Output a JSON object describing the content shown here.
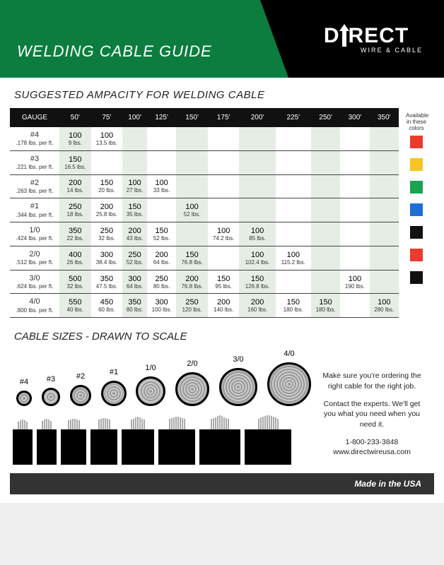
{
  "header": {
    "title": "WELDING CABLE GUIDE",
    "brand_main": "DIRECT",
    "brand_sub": "WIRE & CABLE",
    "bg_green": "#0d7d3f",
    "bg_black": "#000000"
  },
  "section1_title": "SUGGESTED AMPACITY FOR WELDING CABLE",
  "lengths": [
    "50'",
    "75'",
    "100'",
    "125'",
    "150'",
    "175'",
    "200'",
    "225'",
    "250'",
    "300'",
    "350'"
  ],
  "gauge_header": "GAUGE",
  "rows": [
    {
      "gauge": "#4",
      "spec": ".178 lbs. per ft.",
      "cells": [
        {
          "amp": "100",
          "wt": "9 lbs."
        },
        {
          "amp": "100",
          "wt": "13.5 lbs."
        },
        null,
        null,
        null,
        null,
        null,
        null,
        null,
        null,
        null
      ]
    },
    {
      "gauge": "#3",
      "spec": ".221 lbs. per ft.",
      "cells": [
        {
          "amp": "150",
          "wt": "16.5 lbs."
        },
        null,
        null,
        null,
        null,
        null,
        null,
        null,
        null,
        null,
        null
      ]
    },
    {
      "gauge": "#2",
      "spec": ".263 lbs. per ft.",
      "cells": [
        {
          "amp": "200",
          "wt": "14 lbs."
        },
        {
          "amp": "150",
          "wt": "20 lbs."
        },
        {
          "amp": "100",
          "wt": "27 lbs."
        },
        {
          "amp": "100",
          "wt": "33 lbs."
        },
        null,
        null,
        null,
        null,
        null,
        null,
        null
      ]
    },
    {
      "gauge": "#1",
      "spec": ".344 lbs. per ft.",
      "cells": [
        {
          "amp": "250",
          "wt": "18 lbs."
        },
        {
          "amp": "200",
          "wt": "25.8 lbs."
        },
        {
          "amp": "150",
          "wt": "35 lbs."
        },
        null,
        {
          "amp": "100",
          "wt": "52 lbs."
        },
        null,
        null,
        null,
        null,
        null,
        null
      ]
    },
    {
      "gauge": "1/0",
      "spec": ".424 lbs. per ft.",
      "cells": [
        {
          "amp": "350",
          "wt": "22 lbs."
        },
        {
          "amp": "250",
          "wt": "32 lbs."
        },
        {
          "amp": "200",
          "wt": "43 lbs."
        },
        {
          "amp": "150",
          "wt": "52 lbs."
        },
        null,
        {
          "amp": "100",
          "wt": "74.2 lbs."
        },
        {
          "amp": "100",
          "wt": "85 lbs."
        },
        null,
        null,
        null,
        null
      ]
    },
    {
      "gauge": "2/0",
      "spec": ".512 lbs. per ft.",
      "cells": [
        {
          "amp": "400",
          "wt": "26 lbs."
        },
        {
          "amp": "300",
          "wt": "38.4 lbs."
        },
        {
          "amp": "250",
          "wt": "52 lbs."
        },
        {
          "amp": "200",
          "wt": "64 lbs."
        },
        {
          "amp": "150",
          "wt": "76.8 lbs."
        },
        null,
        {
          "amp": "100",
          "wt": "102.4 lbs."
        },
        {
          "amp": "100",
          "wt": "115.2 lbs."
        },
        null,
        null,
        null
      ]
    },
    {
      "gauge": "3/0",
      "spec": ".624 lbs. per ft.",
      "cells": [
        {
          "amp": "500",
          "wt": "32 lbs."
        },
        {
          "amp": "350",
          "wt": "47.5 lbs."
        },
        {
          "amp": "300",
          "wt": "64 lbs."
        },
        {
          "amp": "250",
          "wt": "80 lbs."
        },
        {
          "amp": "200",
          "wt": "76.8 lbs."
        },
        {
          "amp": "150",
          "wt": "95 lbs."
        },
        {
          "amp": "150",
          "wt": "126.8 lbs."
        },
        null,
        null,
        {
          "amp": "100",
          "wt": "190 lbs."
        },
        null
      ]
    },
    {
      "gauge": "4/0",
      "spec": ".800 lbs. per ft.",
      "cells": [
        {
          "amp": "550",
          "wt": "40 lbs."
        },
        {
          "amp": "450",
          "wt": "60 lbs."
        },
        {
          "amp": "350",
          "wt": "80 lbs."
        },
        {
          "amp": "300",
          "wt": "100 lbs."
        },
        {
          "amp": "250",
          "wt": "120 lbs."
        },
        {
          "amp": "200",
          "wt": "140 lbs."
        },
        {
          "amp": "200",
          "wt": "160 lbs."
        },
        {
          "amp": "150",
          "wt": "180 lbs."
        },
        {
          "amp": "150",
          "wt": "180 lbs."
        },
        null,
        {
          "amp": "100",
          "wt": "280 lbs."
        }
      ]
    }
  ],
  "colors_label": "Available in these colors",
  "swatches": [
    "#ee3a2e",
    "#f4c61f",
    "#1aa450",
    "#1f6fd4",
    "#111111",
    "#ee3a2e",
    "#111111"
  ],
  "section2_title": "CABLE SIZES - DRAWN TO SCALE",
  "sizes": [
    {
      "label": "#4",
      "d": 22,
      "block": 28,
      "wires": 5,
      "wh": 16
    },
    {
      "label": "#3",
      "d": 26,
      "block": 28,
      "wires": 5,
      "wh": 17
    },
    {
      "label": "#2",
      "d": 30,
      "block": 36,
      "wires": 6,
      "wh": 18
    },
    {
      "label": "#1",
      "d": 36,
      "block": 38,
      "wires": 6,
      "wh": 19
    },
    {
      "label": "1/0",
      "d": 42,
      "block": 46,
      "wires": 7,
      "wh": 20
    },
    {
      "label": "2/0",
      "d": 48,
      "block": 52,
      "wires": 8,
      "wh": 21
    },
    {
      "label": "3/0",
      "d": 54,
      "block": 58,
      "wires": 9,
      "wh": 22
    },
    {
      "label": "4/0",
      "d": 62,
      "block": 66,
      "wires": 10,
      "wh": 23
    }
  ],
  "contact": {
    "line1": "Make sure you're ordering the right cable for the right job.",
    "line2": "Contact the experts. We'll get you what you need when you need it.",
    "phone": "1-800-233-3848",
    "url": "www.directwireusa.com"
  },
  "footer": "Made in the USA"
}
